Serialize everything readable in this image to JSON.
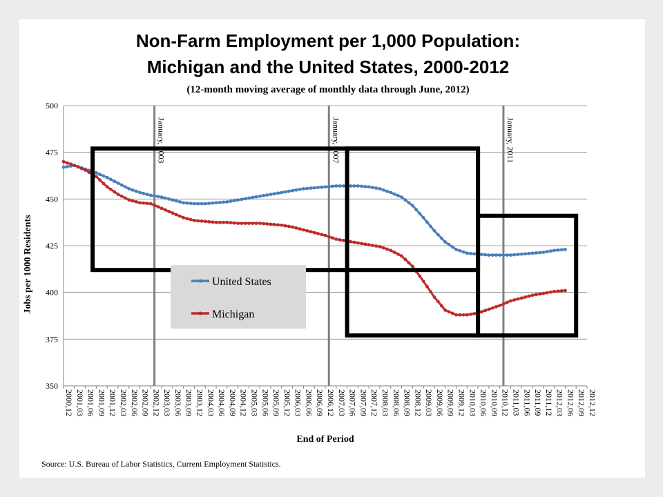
{
  "chart_data": {
    "type": "line",
    "title": "Non-Farm Employment per 1,000 Population:",
    "title_line2": "Michigan and the United States, 2000-2012",
    "subtitle": "(12-month moving average of monthly data through June, 2012)",
    "xlabel": "End of Period",
    "ylabel": "Jobs per 1000 Residents",
    "ylim": [
      350,
      500
    ],
    "yticks": [
      350,
      375,
      400,
      425,
      450,
      475,
      500
    ],
    "grid": true,
    "legend_position": "center-left",
    "x_start": "2000.12",
    "x_end": "2012.12",
    "x_tick_labels": [
      "2000,12",
      "2001,03",
      "2001,06",
      "2001,09",
      "2001,12",
      "2002,03",
      "2002,06",
      "2002,09",
      "2002,12",
      "2003,03",
      "2003,06",
      "2003,09",
      "2003,12",
      "2004,03",
      "2004,06",
      "2004,09",
      "2004,12",
      "2005,03",
      "2005,06",
      "2005,09",
      "2005,12",
      "2006,03",
      "2006,06",
      "2006,09",
      "2006,12",
      "2007,03",
      "2007,06",
      "2007,09",
      "2007,12",
      "2008,03",
      "2008,06",
      "2008,09",
      "2008,12",
      "2009,03",
      "2009,06",
      "2009,09",
      "2009,12",
      "2010,03",
      "2010,06",
      "2010,09",
      "2010,12",
      "2011,03",
      "2011,06",
      "2011,09",
      "2011,12",
      "2012,03",
      "2012,06",
      "2012,09",
      "2012,12"
    ],
    "x": [
      "2000.12",
      "2001.03",
      "2001.06",
      "2001.09",
      "2001.12",
      "2002.03",
      "2002.06",
      "2002.09",
      "2002.12",
      "2003.03",
      "2003.06",
      "2003.09",
      "2003.12",
      "2004.03",
      "2004.06",
      "2004.09",
      "2004.12",
      "2005.03",
      "2005.06",
      "2005.09",
      "2005.12",
      "2006.03",
      "2006.06",
      "2006.09",
      "2006.12",
      "2007.03",
      "2007.06",
      "2007.09",
      "2007.12",
      "2008.03",
      "2008.06",
      "2008.09",
      "2008.12",
      "2009.03",
      "2009.06",
      "2009.09",
      "2009.12",
      "2010.03",
      "2010.06",
      "2010.09",
      "2010.12",
      "2011.03",
      "2011.06",
      "2011.09",
      "2011.12",
      "2012.03",
      "2012.06"
    ],
    "series": [
      {
        "name": "United States",
        "color": "#4a7ebb",
        "values": [
          467.0,
          468.0,
          466.0,
          464.0,
          461.5,
          458.5,
          455.5,
          453.5,
          452.0,
          451.0,
          449.5,
          448.0,
          447.5,
          447.5,
          448.0,
          448.5,
          449.5,
          450.5,
          451.5,
          452.5,
          453.5,
          454.5,
          455.5,
          456.0,
          456.5,
          457.0,
          457.0,
          457.0,
          456.5,
          455.5,
          453.5,
          451.0,
          446.5,
          440.0,
          433.0,
          427.0,
          423.0,
          421.0,
          420.5,
          420.0,
          420.0,
          420.0,
          420.5,
          421.0,
          421.5,
          422.5,
          423.0
        ]
      },
      {
        "name": "Michigan",
        "color": "#be2a2a",
        "values": [
          470.0,
          468.0,
          465.5,
          462.0,
          456.5,
          452.5,
          449.5,
          448.0,
          447.5,
          445.0,
          442.5,
          440.0,
          438.5,
          438.0,
          437.5,
          437.5,
          437.0,
          437.0,
          437.0,
          436.5,
          436.0,
          435.0,
          433.5,
          432.0,
          430.5,
          428.5,
          427.5,
          426.5,
          425.5,
          424.5,
          422.5,
          419.5,
          414.0,
          406.0,
          397.5,
          390.5,
          388.0,
          388.0,
          389.0,
          391.0,
          393.0,
          395.5,
          397.0,
          398.5,
          399.5,
          400.5,
          401.0
        ]
      }
    ],
    "vertical_lines": [
      {
        "at": "2003.01",
        "label": "January, 2003",
        "color": "#808080"
      },
      {
        "at": "2007.01",
        "label": "January, 2007",
        "color": "#808080"
      },
      {
        "at": "2011.01",
        "label": "January, 2011",
        "color": "#808080"
      }
    ],
    "highlight_boxes": [
      {
        "x_from": "2001.08",
        "x_to": "2010.06",
        "y_from": 412,
        "y_to": 477
      },
      {
        "x_from": "2007.06",
        "x_to": "2010.06",
        "y_from": 377,
        "y_to": 477
      },
      {
        "x_from": "2010.06",
        "x_to": "2012.09",
        "y_from": 377,
        "y_to": 441
      }
    ],
    "source": "Source: U.S. Bureau of Labor Statistics, Current Employment Statistics."
  }
}
